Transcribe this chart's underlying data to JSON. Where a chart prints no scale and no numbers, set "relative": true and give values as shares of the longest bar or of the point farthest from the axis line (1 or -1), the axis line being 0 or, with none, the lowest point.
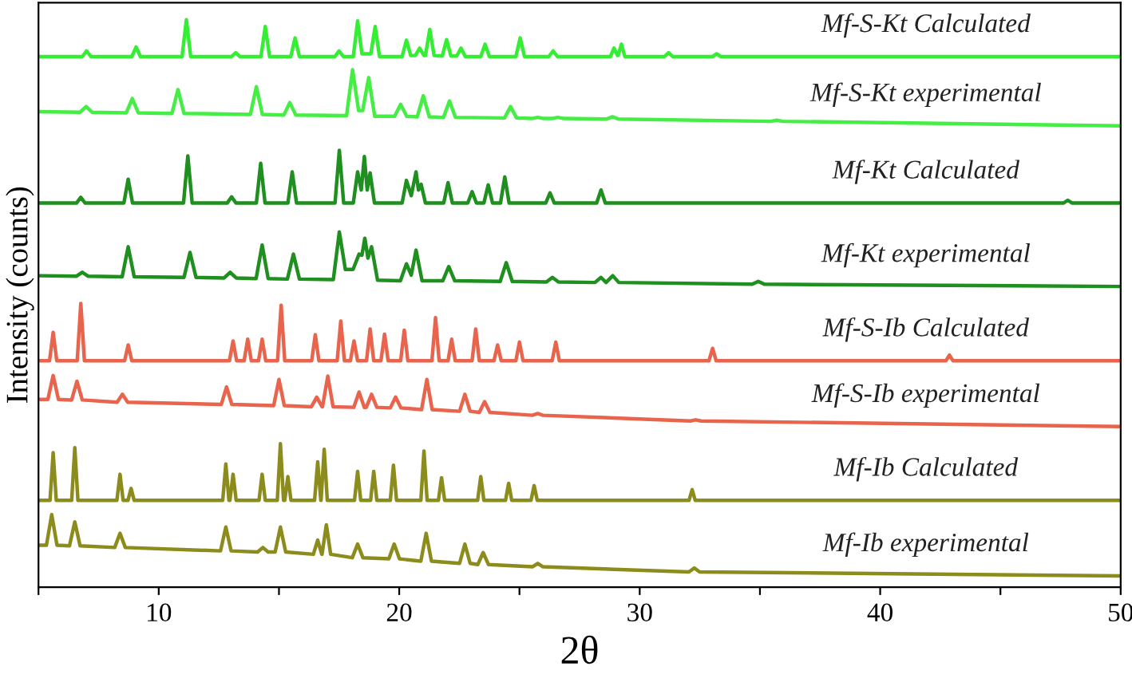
{
  "chart_data": {
    "type": "line",
    "relative": true,
    "xlabel": "2θ",
    "ylabel": "Intensity (counts)",
    "xlim": [
      5,
      50
    ],
    "xticks": [
      {
        "value": 5,
        "label": null
      },
      10,
      {
        "value": 15,
        "label": null
      },
      20,
      {
        "value": 25,
        "label": null
      },
      30,
      {
        "value": 35,
        "label": null
      },
      40,
      {
        "value": 45,
        "label": null
      },
      50
    ],
    "grid": false,
    "legend": false,
    "marker": "none",
    "line_style": "solid",
    "series": [
      {
        "name": "Mf-S-Kt Calculated",
        "color": "#33ee33",
        "x": [
          5,
          6.82,
          7.0,
          7.18,
          8.88,
          9.06,
          9.24,
          10.97,
          11.15,
          11.33,
          13.02,
          13.2,
          13.38,
          14.25,
          14.43,
          14.61,
          15.49,
          15.67,
          15.85,
          17.32,
          17.5,
          17.68,
          18.09,
          18.27,
          18.45,
          18.82,
          19.0,
          19.18,
          20.12,
          20.3,
          20.48,
          20.67,
          20.85,
          21.03,
          21.09,
          21.27,
          21.45,
          21.79,
          21.97,
          22.15,
          22.39,
          22.57,
          22.75,
          23.39,
          23.57,
          23.75,
          24.85,
          25.03,
          25.21,
          26.22,
          26.4,
          26.58,
          28.78,
          28.93,
          29.08,
          29.1,
          29.24,
          29.38,
          31.02,
          31.2,
          31.38,
          33.02,
          33.2,
          33.38,
          50
        ],
        "values": [
          0.935,
          0.935,
          0.945,
          0.935,
          0.935,
          0.952,
          0.935,
          0.935,
          1.0,
          0.935,
          0.935,
          0.942,
          0.935,
          0.935,
          0.988,
          0.935,
          0.935,
          0.968,
          0.935,
          0.935,
          0.945,
          0.935,
          0.935,
          0.998,
          0.94,
          0.94,
          0.988,
          0.935,
          0.935,
          0.964,
          0.937,
          0.937,
          0.95,
          0.937,
          0.937,
          0.983,
          0.937,
          0.936,
          0.965,
          0.936,
          0.936,
          0.95,
          0.935,
          0.935,
          0.957,
          0.935,
          0.935,
          0.968,
          0.935,
          0.935,
          0.945,
          0.935,
          0.935,
          0.95,
          0.937,
          0.937,
          0.957,
          0.935,
          0.935,
          0.942,
          0.935,
          0.935,
          0.94,
          0.935,
          0.935
        ]
      },
      {
        "name": "Mf-S-Kt experimental",
        "color": "#44ee44",
        "x": [
          5,
          6.73,
          6.98,
          7.23,
          8.65,
          8.9,
          9.15,
          10.55,
          10.8,
          11.05,
          13.81,
          14.06,
          14.31,
          15.2,
          15.45,
          15.7,
          17.81,
          18.06,
          18.31,
          18.48,
          18.73,
          18.98,
          19.81,
          20.06,
          20.31,
          20.75,
          21.0,
          21.25,
          21.84,
          22.09,
          22.34,
          24.38,
          24.63,
          24.88,
          25.51,
          25.76,
          26.01,
          26.35,
          26.6,
          26.85,
          28.62,
          28.87,
          29.12,
          35.45,
          35.7,
          35.95,
          50
        ],
        "values": [
          0.838,
          0.837,
          0.847,
          0.837,
          0.836,
          0.861,
          0.836,
          0.835,
          0.877,
          0.835,
          0.833,
          0.882,
          0.833,
          0.832,
          0.854,
          0.832,
          0.831,
          0.912,
          0.84,
          0.84,
          0.898,
          0.83,
          0.83,
          0.851,
          0.83,
          0.829,
          0.866,
          0.829,
          0.828,
          0.857,
          0.828,
          0.827,
          0.847,
          0.827,
          0.826,
          0.828,
          0.826,
          0.826,
          0.828,
          0.826,
          0.825,
          0.829,
          0.825,
          0.821,
          0.823,
          0.821,
          0.813
        ]
      },
      {
        "name": "Mf-Kt Calculated",
        "color": "#1f8f1f",
        "x": [
          5,
          6.58,
          6.76,
          6.94,
          8.55,
          8.73,
          8.91,
          11.03,
          11.21,
          11.39,
          12.85,
          13.03,
          13.21,
          14.06,
          14.24,
          14.42,
          15.37,
          15.55,
          15.73,
          17.33,
          17.51,
          17.69,
          18.09,
          18.27,
          18.42,
          18.55,
          18.67,
          18.79,
          18.97,
          20.12,
          20.3,
          20.5,
          20.7,
          20.8,
          20.91,
          21.09,
          21.85,
          22.03,
          22.21,
          22.85,
          23.03,
          23.21,
          23.52,
          23.7,
          23.88,
          24.21,
          24.39,
          24.57,
          26.09,
          26.27,
          26.45,
          28.21,
          28.39,
          28.57,
          47.62,
          47.8,
          47.98,
          50
        ],
        "values": [
          0.677,
          0.677,
          0.687,
          0.677,
          0.677,
          0.719,
          0.677,
          0.677,
          0.76,
          0.677,
          0.677,
          0.688,
          0.677,
          0.677,
          0.747,
          0.677,
          0.677,
          0.732,
          0.677,
          0.677,
          0.77,
          0.677,
          0.677,
          0.732,
          0.7,
          0.759,
          0.7,
          0.73,
          0.677,
          0.677,
          0.717,
          0.69,
          0.732,
          0.7,
          0.71,
          0.677,
          0.677,
          0.713,
          0.677,
          0.677,
          0.697,
          0.677,
          0.677,
          0.709,
          0.677,
          0.677,
          0.723,
          0.677,
          0.677,
          0.695,
          0.677,
          0.677,
          0.7,
          0.677,
          0.677,
          0.682,
          0.677,
          0.677
        ]
      },
      {
        "name": "Mf-Kt experimental",
        "color": "#1f8f1f",
        "x": [
          5,
          6.57,
          6.82,
          7.07,
          8.48,
          8.73,
          8.98,
          11.05,
          11.3,
          11.55,
          12.72,
          12.97,
          13.22,
          14.05,
          14.3,
          14.55,
          15.35,
          15.6,
          15.85,
          17.26,
          17.51,
          17.76,
          18.08,
          18.33,
          18.45,
          18.57,
          18.7,
          18.85,
          19.1,
          20.05,
          20.3,
          20.5,
          20.7,
          20.95,
          21.81,
          22.06,
          22.31,
          24.2,
          24.45,
          24.7,
          26.12,
          26.37,
          26.62,
          28.14,
          28.39,
          28.6,
          28.88,
          29.13,
          34.68,
          34.93,
          35.18,
          50
        ],
        "values": [
          0.549,
          0.548,
          0.555,
          0.548,
          0.547,
          0.6,
          0.547,
          0.546,
          0.59,
          0.546,
          0.545,
          0.555,
          0.545,
          0.544,
          0.603,
          0.544,
          0.543,
          0.587,
          0.543,
          0.542,
          0.626,
          0.56,
          0.56,
          0.587,
          0.585,
          0.615,
          0.58,
          0.6,
          0.541,
          0.54,
          0.57,
          0.55,
          0.594,
          0.54,
          0.54,
          0.565,
          0.54,
          0.539,
          0.572,
          0.539,
          0.538,
          0.546,
          0.538,
          0.537,
          0.546,
          0.537,
          0.549,
          0.537,
          0.534,
          0.539,
          0.534,
          0.53
        ]
      },
      {
        "name": "Mf-S-Ib Calculated",
        "color": "#e8644c",
        "x": [
          5,
          5.46,
          5.61,
          5.76,
          6.61,
          6.76,
          6.91,
          8.58,
          8.73,
          8.88,
          12.94,
          13.09,
          13.24,
          13.55,
          13.7,
          13.85,
          14.15,
          14.3,
          14.45,
          14.94,
          15.09,
          15.24,
          16.36,
          16.51,
          16.66,
          17.42,
          17.57,
          17.72,
          17.97,
          18.12,
          18.27,
          18.64,
          18.79,
          18.94,
          19.24,
          19.39,
          19.54,
          20.06,
          20.21,
          20.36,
          21.36,
          21.51,
          21.66,
          22.03,
          22.18,
          22.33,
          23.03,
          23.18,
          23.33,
          23.94,
          24.09,
          24.24,
          24.85,
          25.0,
          25.15,
          26.36,
          26.51,
          26.66,
          32.88,
          33.03,
          33.18,
          42.73,
          42.88,
          43.03,
          50
        ],
        "values": [
          0.399,
          0.399,
          0.449,
          0.399,
          0.399,
          0.5,
          0.399,
          0.399,
          0.427,
          0.399,
          0.399,
          0.434,
          0.399,
          0.399,
          0.437,
          0.399,
          0.399,
          0.437,
          0.399,
          0.399,
          0.497,
          0.399,
          0.399,
          0.445,
          0.399,
          0.399,
          0.469,
          0.399,
          0.399,
          0.434,
          0.399,
          0.399,
          0.455,
          0.399,
          0.399,
          0.446,
          0.399,
          0.399,
          0.453,
          0.399,
          0.399,
          0.475,
          0.399,
          0.399,
          0.437,
          0.399,
          0.399,
          0.455,
          0.399,
          0.399,
          0.427,
          0.399,
          0.399,
          0.432,
          0.399,
          0.399,
          0.432,
          0.399,
          0.399,
          0.421,
          0.399,
          0.399,
          0.409,
          0.399,
          0.399
        ]
      },
      {
        "name": "Mf-S-Ib experimental",
        "color": "#e8644c",
        "x": [
          5,
          5.39,
          5.61,
          5.83,
          6.38,
          6.6,
          6.82,
          8.27,
          8.49,
          8.71,
          12.6,
          12.82,
          13.04,
          14.78,
          15.0,
          15.22,
          16.35,
          16.57,
          16.79,
          16.81,
          17.03,
          17.25,
          18.11,
          18.33,
          18.55,
          18.63,
          18.85,
          19.07,
          19.63,
          19.85,
          20.07,
          20.93,
          21.15,
          21.37,
          22.51,
          22.73,
          22.95,
          23.33,
          23.55,
          23.77,
          25.54,
          25.76,
          25.98,
          32.11,
          32.33,
          32.55,
          50
        ],
        "values": [
          0.331,
          0.331,
          0.373,
          0.331,
          0.33,
          0.363,
          0.33,
          0.326,
          0.34,
          0.326,
          0.322,
          0.353,
          0.322,
          0.32,
          0.366,
          0.32,
          0.318,
          0.335,
          0.318,
          0.318,
          0.372,
          0.318,
          0.317,
          0.344,
          0.317,
          0.317,
          0.34,
          0.317,
          0.316,
          0.335,
          0.316,
          0.313,
          0.366,
          0.313,
          0.31,
          0.34,
          0.31,
          0.308,
          0.327,
          0.308,
          0.303,
          0.306,
          0.303,
          0.293,
          0.295,
          0.293,
          0.283
        ]
      },
      {
        "name": "Mf-Ib Calculated",
        "color": "#8c8c1c",
        "x": [
          5,
          5.48,
          5.61,
          5.74,
          6.38,
          6.51,
          6.64,
          8.26,
          8.39,
          8.52,
          8.72,
          8.85,
          8.98,
          12.66,
          12.79,
          12.92,
          12.96,
          13.09,
          13.22,
          14.17,
          14.3,
          14.43,
          14.93,
          15.06,
          15.19,
          15.24,
          15.37,
          15.5,
          16.48,
          16.61,
          16.74,
          16.75,
          16.88,
          17.01,
          18.14,
          18.27,
          18.4,
          18.81,
          18.94,
          19.07,
          19.63,
          19.76,
          19.89,
          20.9,
          21.03,
          21.16,
          21.63,
          21.76,
          21.89,
          23.26,
          23.39,
          23.52,
          24.42,
          24.55,
          24.68,
          25.48,
          25.61,
          25.74,
          32.05,
          32.18,
          32.31,
          50
        ],
        "values": [
          0.153,
          0.153,
          0.237,
          0.153,
          0.153,
          0.246,
          0.153,
          0.153,
          0.199,
          0.153,
          0.153,
          0.174,
          0.153,
          0.153,
          0.217,
          0.153,
          0.153,
          0.199,
          0.153,
          0.153,
          0.199,
          0.153,
          0.153,
          0.253,
          0.153,
          0.153,
          0.195,
          0.153,
          0.153,
          0.221,
          0.153,
          0.153,
          0.243,
          0.153,
          0.153,
          0.204,
          0.153,
          0.153,
          0.204,
          0.153,
          0.153,
          0.215,
          0.153,
          0.153,
          0.24,
          0.153,
          0.153,
          0.193,
          0.153,
          0.153,
          0.195,
          0.153,
          0.153,
          0.183,
          0.153,
          0.153,
          0.179,
          0.153,
          0.153,
          0.172,
          0.153,
          0.153
        ]
      },
      {
        "name": "Mf-Ib experimental",
        "color": "#8c8c1c",
        "x": [
          5,
          5.33,
          5.55,
          5.77,
          6.29,
          6.51,
          6.73,
          8.17,
          8.39,
          8.61,
          12.57,
          12.79,
          13.01,
          14.11,
          14.33,
          14.55,
          14.84,
          15.06,
          15.28,
          16.43,
          16.61,
          16.78,
          16.79,
          16.97,
          17.15,
          18.05,
          18.27,
          18.49,
          19.57,
          19.79,
          20.01,
          20.9,
          21.12,
          21.34,
          22.51,
          22.73,
          22.95,
          23.27,
          23.49,
          23.71,
          25.54,
          25.76,
          25.98,
          32.05,
          32.27,
          32.49,
          50
        ],
        "values": [
          0.074,
          0.074,
          0.128,
          0.074,
          0.073,
          0.115,
          0.073,
          0.07,
          0.095,
          0.07,
          0.064,
          0.106,
          0.064,
          0.062,
          0.07,
          0.062,
          0.062,
          0.106,
          0.062,
          0.058,
          0.083,
          0.058,
          0.058,
          0.11,
          0.058,
          0.052,
          0.076,
          0.052,
          0.05,
          0.076,
          0.05,
          0.046,
          0.095,
          0.046,
          0.042,
          0.076,
          0.042,
          0.04,
          0.061,
          0.04,
          0.036,
          0.042,
          0.036,
          0.027,
          0.034,
          0.027,
          0.02
        ]
      }
    ]
  }
}
